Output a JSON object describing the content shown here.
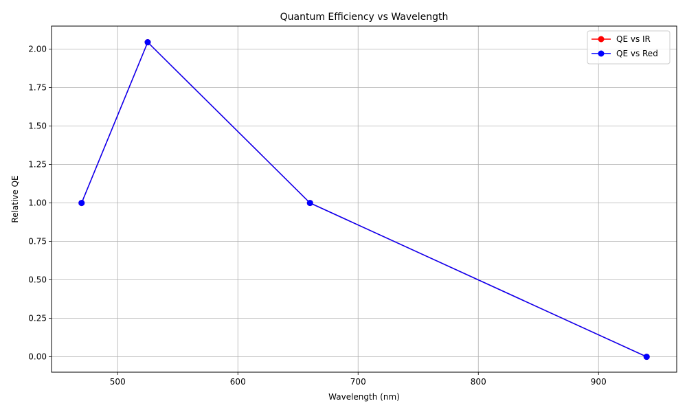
{
  "chart_data": {
    "type": "line",
    "title": "Quantum Efficiency vs Wavelength",
    "xlabel": "Wavelength (nm)",
    "ylabel": "Relative QE",
    "xlim": [
      445,
      965
    ],
    "ylim": [
      -0.1,
      2.15
    ],
    "xticks": [
      500,
      600,
      700,
      800,
      900
    ],
    "yticks": [
      0.0,
      0.25,
      0.5,
      0.75,
      1.0,
      1.25,
      1.5,
      1.75,
      2.0
    ],
    "grid": true,
    "legend_position": "top-right",
    "series": [
      {
        "name": "QE vs IR",
        "color": "#ff0000",
        "marker": "circle",
        "x": [
          470,
          525,
          660,
          940
        ],
        "y": [
          1.0,
          2.045,
          1.0,
          0.0
        ]
      },
      {
        "name": "QE vs Red",
        "color": "#0000ff",
        "marker": "circle",
        "x": [
          470,
          525,
          660,
          940
        ],
        "y": [
          1.0,
          2.045,
          1.0,
          0.0
        ]
      }
    ]
  }
}
